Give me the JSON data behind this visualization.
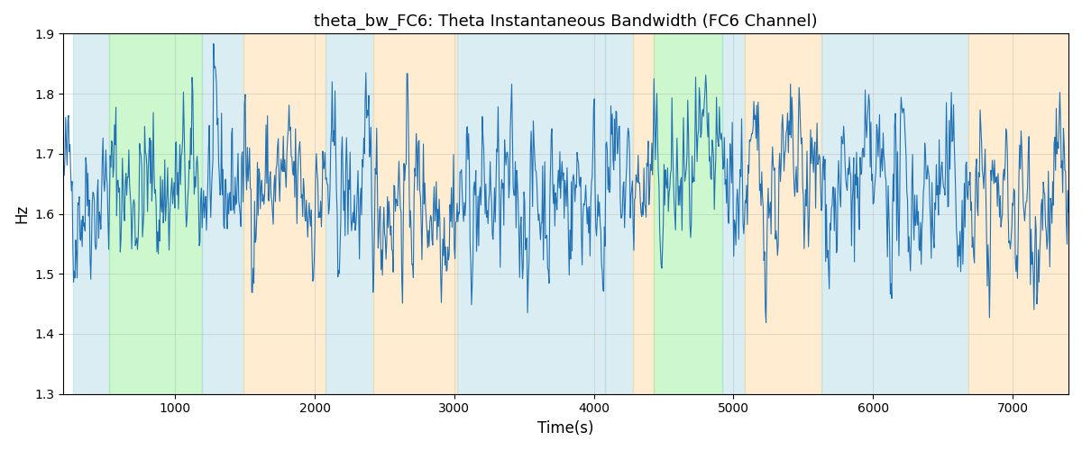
{
  "title": "theta_bw_FC6: Theta Instantaneous Bandwidth (FC6 Channel)",
  "xlabel": "Time(s)",
  "ylabel": "Hz",
  "xlim": [
    200,
    7400
  ],
  "ylim": [
    1.3,
    1.9
  ],
  "yticks": [
    1.3,
    1.4,
    1.5,
    1.6,
    1.7,
    1.8,
    1.9
  ],
  "xticks": [
    1000,
    2000,
    3000,
    4000,
    5000,
    6000,
    7000
  ],
  "line_color": "#2171b5",
  "line_width": 0.8,
  "seed": 42,
  "n_points": 1400,
  "t_start": 200,
  "t_end": 7400,
  "signal_mean": 1.635,
  "signal_std": 0.075,
  "ar_coeff": 0.7,
  "background_regions": [
    {
      "start": 270,
      "end": 530,
      "color": "#add8e6",
      "alpha": 0.45
    },
    {
      "start": 530,
      "end": 1190,
      "color": "#90ee90",
      "alpha": 0.45
    },
    {
      "start": 1190,
      "end": 1490,
      "color": "#add8e6",
      "alpha": 0.45
    },
    {
      "start": 1490,
      "end": 2080,
      "color": "#ffd699",
      "alpha": 0.45
    },
    {
      "start": 2080,
      "end": 2420,
      "color": "#add8e6",
      "alpha": 0.45
    },
    {
      "start": 2420,
      "end": 3020,
      "color": "#ffd699",
      "alpha": 0.45
    },
    {
      "start": 3020,
      "end": 4080,
      "color": "#add8e6",
      "alpha": 0.45
    },
    {
      "start": 4080,
      "end": 4280,
      "color": "#add8e6",
      "alpha": 0.45
    },
    {
      "start": 4280,
      "end": 4430,
      "color": "#ffd699",
      "alpha": 0.45
    },
    {
      "start": 4430,
      "end": 4920,
      "color": "#90ee90",
      "alpha": 0.45
    },
    {
      "start": 4920,
      "end": 5080,
      "color": "#add8e6",
      "alpha": 0.45
    },
    {
      "start": 5080,
      "end": 5630,
      "color": "#ffd699",
      "alpha": 0.45
    },
    {
      "start": 5630,
      "end": 6680,
      "color": "#add8e6",
      "alpha": 0.45
    },
    {
      "start": 6680,
      "end": 7400,
      "color": "#ffd699",
      "alpha": 0.45
    }
  ],
  "bg_color": "white",
  "grid": true,
  "grid_color": "#aaaaaa",
  "grid_alpha": 0.5,
  "grid_linewidth": 0.5
}
